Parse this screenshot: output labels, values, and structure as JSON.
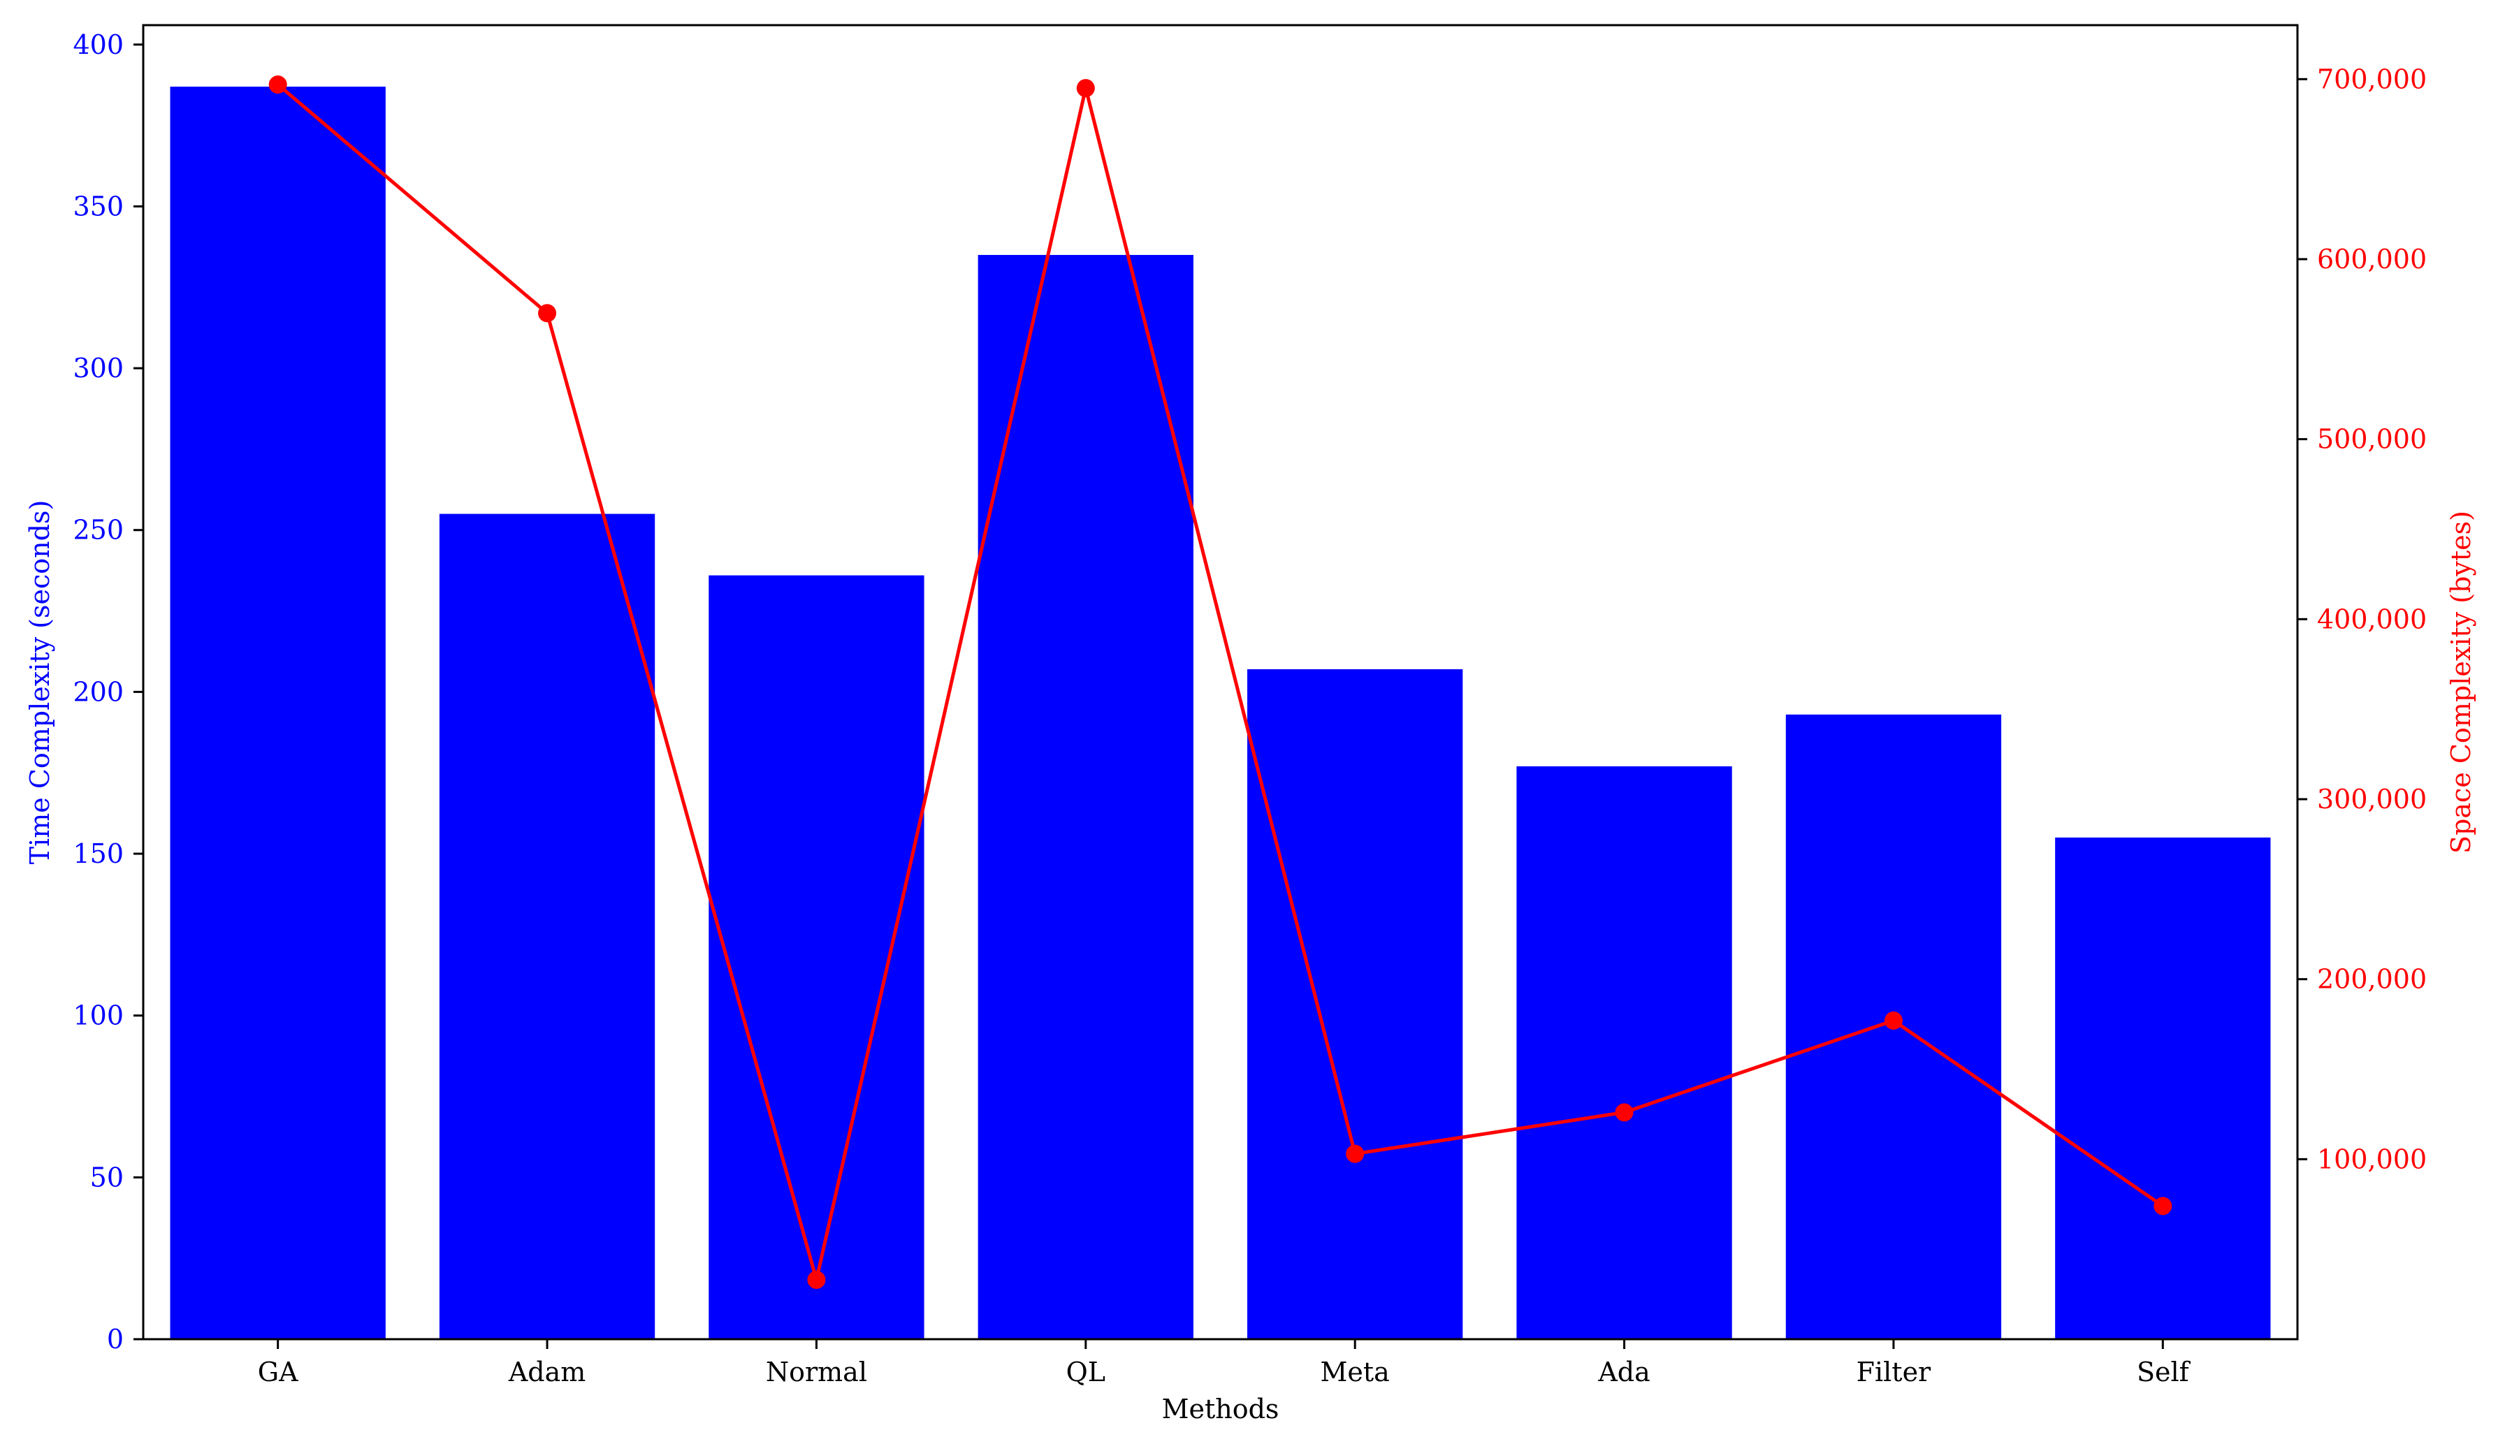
{
  "chart_data": {
    "type": "bar",
    "categories": [
      "GA",
      "Adam",
      "Normal",
      "QL",
      "Meta",
      "Ada",
      "Filter",
      "Self"
    ],
    "xlabel": "Methods",
    "series": [
      {
        "type": "bar",
        "axis": "left",
        "color": "#0000ff",
        "values": [
          387,
          255,
          236,
          335,
          207,
          177,
          193,
          155
        ]
      },
      {
        "type": "line",
        "axis": "right",
        "color": "#ff0000",
        "marker": "circle",
        "values": [
          697000,
          570000,
          33000,
          695000,
          103000,
          126000,
          177000,
          74000
        ]
      }
    ],
    "y_left": {
      "label": "Time Complexity (seconds)",
      "color": "#0000ff",
      "lim": [
        0,
        406
      ],
      "ticks": [
        0,
        50,
        100,
        150,
        200,
        250,
        300,
        350,
        400
      ],
      "tick_labels": [
        "0",
        "50",
        "100",
        "150",
        "200",
        "250",
        "300",
        "350",
        "400"
      ]
    },
    "y_right": {
      "label": "Space Complexity (bytes)",
      "color": "#ff0000",
      "lim": [
        0,
        730000
      ],
      "ticks": [
        100000,
        200000,
        300000,
        400000,
        500000,
        600000,
        700000
      ],
      "tick_labels": [
        "100,000",
        "200,000",
        "300,000",
        "400,000",
        "500,000",
        "600,000",
        "700,000"
      ]
    },
    "grid": false,
    "legend": "none"
  }
}
